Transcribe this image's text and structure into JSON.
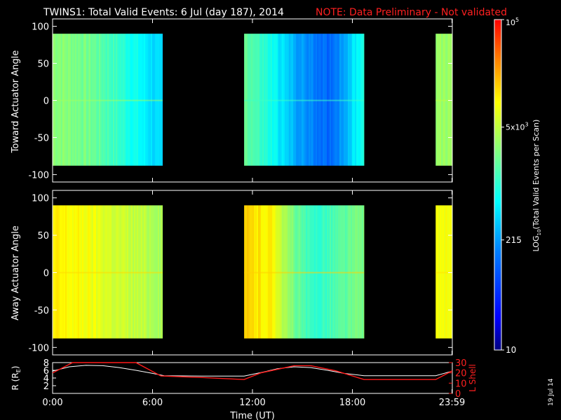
{
  "header": {
    "title": "TWINS1: Total Valid Events:  6 Jul (day 187), 2014",
    "note": "NOTE: Data Preliminary - Not validated"
  },
  "stamp": "19 Jul 14",
  "colors": {
    "bg": "#000000",
    "axis": "#ffffff",
    "note": "#ff2020",
    "lshell": "#ff1a1a",
    "radius": "#ffffff"
  },
  "colorbar": {
    "label": "LOG10(Total Valid Events per Scan)",
    "label_base": "LOG",
    "label_sub": "10",
    "label_rest": "(Total Valid Events per Scan)",
    "ticks": [
      {
        "text": "10",
        "value": 10
      },
      {
        "text": "215",
        "value": 215
      },
      {
        "base": "5x10",
        "exp": "3",
        "value": 5000
      },
      {
        "base": "10",
        "exp": "5",
        "value": 100000
      }
    ],
    "range": [
      10,
      100000
    ],
    "scale": "log"
  },
  "x_axis": {
    "label": "Time (UT)",
    "range_hours": [
      0,
      24
    ],
    "ticks": [
      {
        "text": "0:00",
        "value": 0
      },
      {
        "text": "6:00",
        "value": 6
      },
      {
        "text": "12:00",
        "value": 12
      },
      {
        "text": "18:00",
        "value": 18
      },
      {
        "text": "23:59",
        "value": 23.98
      }
    ]
  },
  "chart_data": [
    {
      "type": "heatmap",
      "ylabel": "Toward Actuator Angle",
      "ylim": [
        -110,
        110
      ],
      "yticks": [
        "100",
        "50",
        "0",
        "-50",
        "-100"
      ],
      "angle_range": [
        -88,
        90
      ],
      "data_blocks": [
        {
          "start_hour": 0.0,
          "end_hour": 6.6,
          "profile": [
            [
              0.0,
              0.62
            ],
            [
              0.35,
              0.58
            ],
            [
              0.7,
              0.48
            ],
            [
              1.0,
              0.38
            ]
          ]
        },
        {
          "start_hour": 11.5,
          "end_hour": 18.7,
          "profile": [
            [
              0.0,
              0.58
            ],
            [
              0.2,
              0.48
            ],
            [
              0.45,
              0.34
            ],
            [
              0.7,
              0.26
            ],
            [
              0.8,
              0.33
            ],
            [
              1.0,
              0.5
            ]
          ]
        },
        {
          "start_hour": 23.0,
          "end_hour": 24.0,
          "profile": [
            [
              0.0,
              0.63
            ],
            [
              1.0,
              0.63
            ]
          ]
        }
      ]
    },
    {
      "type": "heatmap",
      "ylabel": "Away Actuator Angle",
      "ylim": [
        -110,
        110
      ],
      "yticks": [
        "100",
        "50",
        "0",
        "-50",
        "-100"
      ],
      "angle_range": [
        -88,
        90
      ],
      "data_blocks": [
        {
          "start_hour": 0.0,
          "end_hour": 6.6,
          "profile": [
            [
              0.0,
              0.76
            ],
            [
              0.3,
              0.74
            ],
            [
              0.6,
              0.69
            ],
            [
              1.0,
              0.65
            ]
          ]
        },
        {
          "start_hour": 11.5,
          "end_hour": 18.7,
          "profile": [
            [
              0.0,
              0.79
            ],
            [
              0.25,
              0.75
            ],
            [
              0.35,
              0.63
            ],
            [
              0.55,
              0.5
            ],
            [
              0.75,
              0.54
            ],
            [
              1.0,
              0.6
            ]
          ]
        },
        {
          "start_hour": 23.0,
          "end_hour": 24.0,
          "profile": [
            [
              0.0,
              0.74
            ],
            [
              1.0,
              0.74
            ]
          ]
        }
      ]
    },
    {
      "type": "line",
      "ylabel_left_base": "R (R",
      "ylabel_left_sub": "E",
      "ylabel_left_close": ")",
      "ylabel_right": "L Shell",
      "ylim_left": [
        0,
        8
      ],
      "ylim_right": [
        0,
        30
      ],
      "yticks_left": [
        "8",
        "6",
        "4",
        "2"
      ],
      "yticks_right": [
        "30",
        "20",
        "10",
        "0"
      ],
      "series": [
        {
          "axis": "left",
          "points": [
            [
              0,
              5.8
            ],
            [
              1,
              6.9
            ],
            [
              2,
              7.3
            ],
            [
              3,
              7.2
            ],
            [
              4,
              6.7
            ],
            [
              5,
              6.0
            ],
            [
              6,
              5.2
            ],
            [
              6.7,
              4.6
            ],
            [
              9,
              4.5
            ],
            [
              11.5,
              4.5
            ],
            [
              12.5,
              5.4
            ],
            [
              13.5,
              6.4
            ],
            [
              14.5,
              6.9
            ],
            [
              15.5,
              6.7
            ],
            [
              16.5,
              6.0
            ],
            [
              17.5,
              5.2
            ],
            [
              18.7,
              4.6
            ],
            [
              20,
              4.6
            ],
            [
              22,
              4.6
            ],
            [
              23,
              4.6
            ],
            [
              24,
              5.8
            ]
          ]
        },
        {
          "axis": "right",
          "points": [
            [
              0,
              20
            ],
            [
              1.2,
              30
            ],
            [
              5,
              30
            ],
            [
              6.5,
              17
            ],
            [
              9,
              15.5
            ],
            [
              11.5,
              13.5
            ],
            [
              12.5,
              20
            ],
            [
              14.5,
              27
            ],
            [
              15.5,
              27
            ],
            [
              17,
              22
            ],
            [
              18.7,
              13.5
            ],
            [
              20,
              13.5
            ],
            [
              23,
              13.5
            ],
            [
              24,
              22
            ]
          ]
        }
      ]
    }
  ]
}
